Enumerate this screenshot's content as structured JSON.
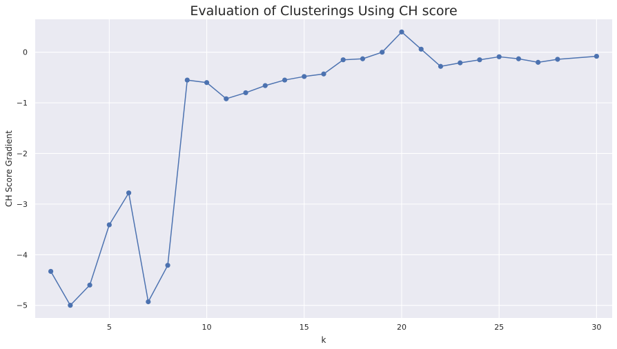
{
  "chart_data": {
    "type": "line",
    "title": "Evaluation of Clusterings Using CH score",
    "xlabel": "k",
    "ylabel": "CH Score Gradient",
    "xlim": [
      1.2,
      30.8
    ],
    "ylim": [
      -5.25,
      0.65
    ],
    "xticks": [
      5,
      10,
      15,
      20,
      25,
      30
    ],
    "yticks": [
      -5,
      -4,
      -3,
      -2,
      -1,
      0
    ],
    "ytick_labels": [
      "−5",
      "−4",
      "−3",
      "−2",
      "−1",
      "0"
    ],
    "grid": true,
    "series": [
      {
        "color": "#4c72b0",
        "marker": "circle",
        "x": [
          2,
          3,
          4,
          5,
          6,
          7,
          8,
          9,
          10,
          11,
          12,
          13,
          14,
          15,
          16,
          17,
          18,
          19,
          20,
          21,
          22,
          23,
          24,
          25,
          26,
          27,
          28,
          30
        ],
        "y": [
          -4.33,
          -5.0,
          -4.6,
          -3.41,
          -2.78,
          -4.93,
          -4.21,
          -0.55,
          -0.6,
          -0.92,
          -0.8,
          -0.66,
          -0.55,
          -0.48,
          -0.43,
          -0.15,
          -0.13,
          0.0,
          0.4,
          0.06,
          -0.28,
          -0.21,
          -0.15,
          -0.09,
          -0.13,
          -0.2,
          -0.14,
          -0.08
        ]
      }
    ]
  }
}
